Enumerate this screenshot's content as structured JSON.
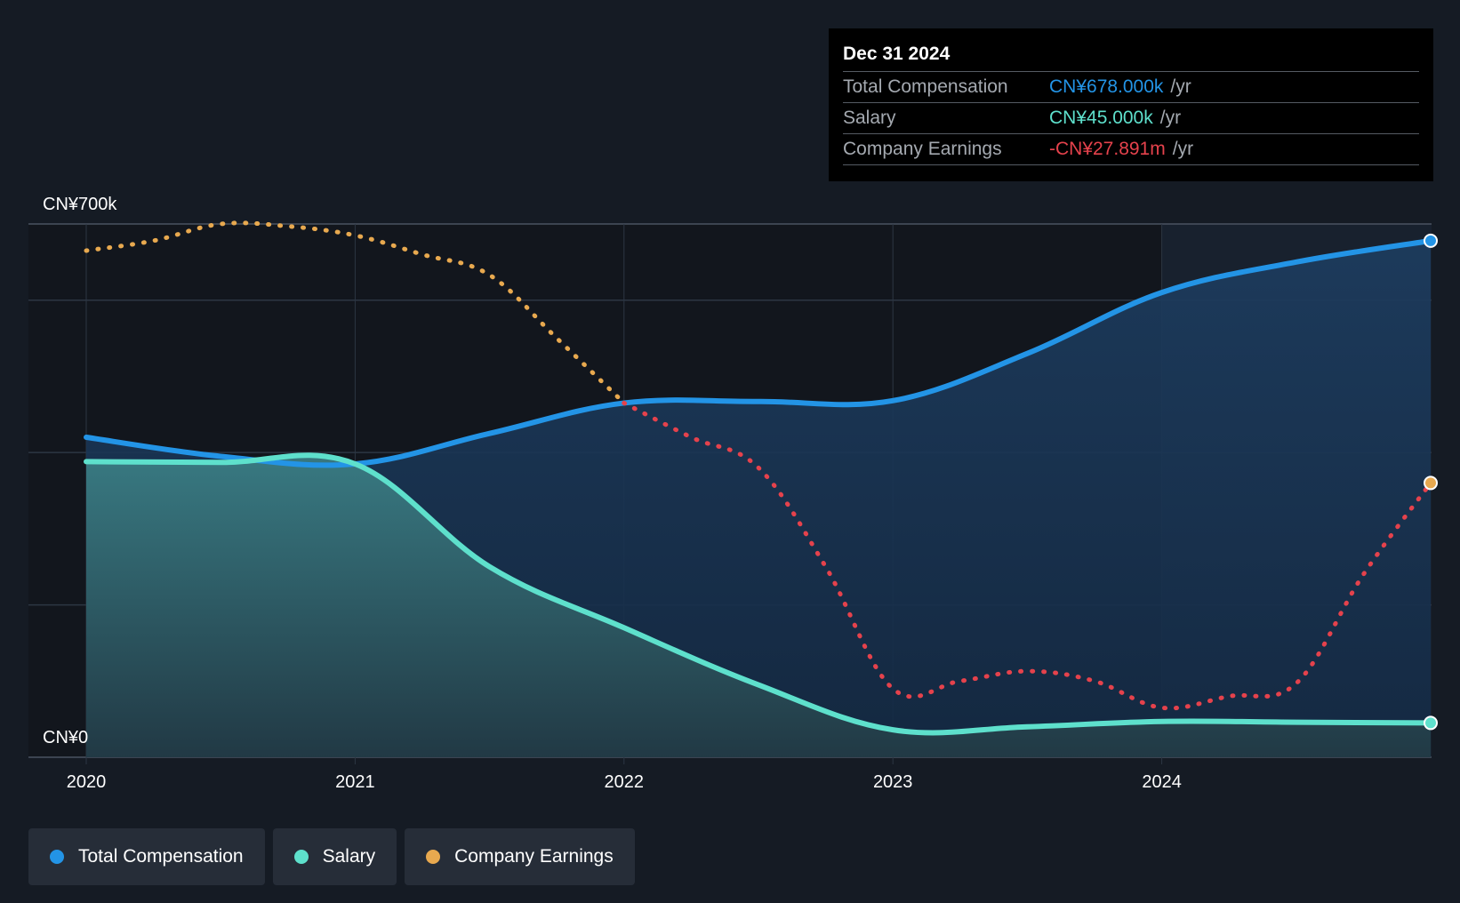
{
  "chart_data": {
    "type": "line",
    "y_top_label": "CN¥700k",
    "y_bottom_label": "CN¥0",
    "ylim": [
      0,
      700
    ],
    "xlim": [
      2020,
      2025
    ],
    "x_ticks": [
      "2020",
      "2021",
      "2022",
      "2023",
      "2024"
    ],
    "series": [
      {
        "name": "Total Compensation",
        "color": "#2394e6",
        "x": [
          2020.0,
          2020.5,
          2021.0,
          2021.5,
          2022.0,
          2022.5,
          2023.0,
          2023.5,
          2024.0,
          2024.5,
          2025.0
        ],
        "values": [
          420,
          395,
          385,
          425,
          465,
          467,
          468,
          530,
          610,
          650,
          678
        ]
      },
      {
        "name": "Salary",
        "color": "#5ee0cc",
        "x": [
          2020.0,
          2020.5,
          2021.0,
          2021.5,
          2022.0,
          2022.5,
          2023.0,
          2023.5,
          2024.0,
          2024.5,
          2025.0
        ],
        "values": [
          388,
          387,
          385,
          250,
          170,
          95,
          36,
          40,
          47,
          46,
          45
        ]
      },
      {
        "name": "Company Earnings",
        "color": "#e8a94f",
        "negative_color": "#e5424c",
        "x": [
          2020.0,
          2020.25,
          2020.5,
          2020.75,
          2021.0,
          2021.25,
          2021.5,
          2021.75,
          2022.0,
          2022.25,
          2022.5,
          2022.75,
          2023.0,
          2023.25,
          2023.5,
          2023.75,
          2024.0,
          2024.25,
          2024.5,
          2024.75,
          2025.0
        ],
        "values": [
          665,
          678,
          700,
          697,
          685,
          660,
          633,
          550,
          465,
          420,
          380,
          250,
          90,
          100,
          113,
          100,
          65,
          80,
          97,
          240,
          360
        ]
      }
    ]
  },
  "tooltip": {
    "date": "Dec 31 2024",
    "rows": [
      {
        "label": "Total Compensation",
        "value": "CN¥678.000k",
        "unit": "/yr",
        "color": "#2394e6"
      },
      {
        "label": "Salary",
        "value": "CN¥45.000k",
        "unit": "/yr",
        "color": "#5ee0cc"
      },
      {
        "label": "Company Earnings",
        "value": "-CN¥27.891m",
        "unit": "/yr",
        "color": "#e5424c"
      }
    ]
  },
  "legend": [
    {
      "label": "Total Compensation",
      "color": "#2394e6"
    },
    {
      "label": "Salary",
      "color": "#5ee0cc"
    },
    {
      "label": "Company Earnings",
      "color": "#e8a94f"
    }
  ]
}
